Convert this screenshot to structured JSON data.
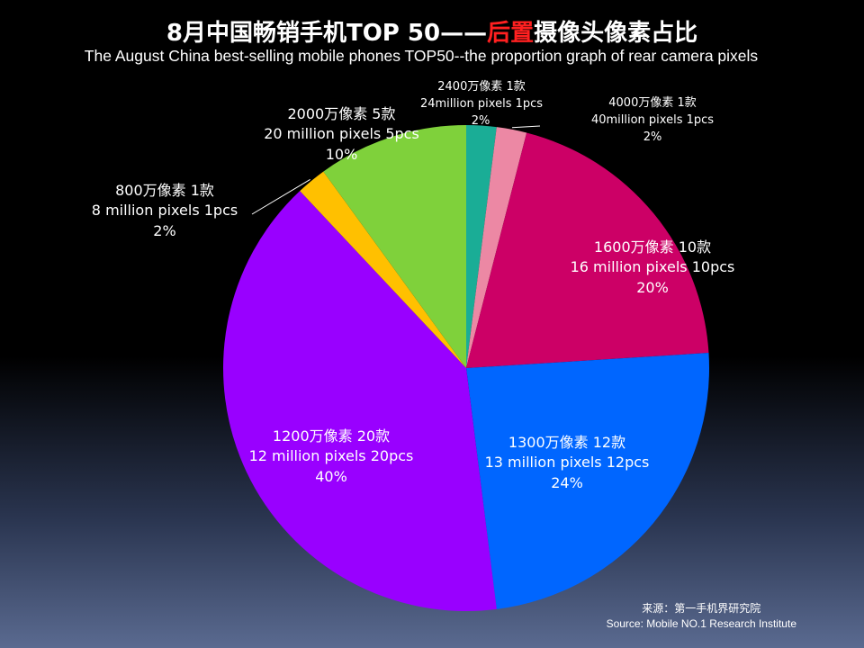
{
  "title": {
    "prefix": "8月中国畅销手机TOP 50——",
    "highlight": "后置",
    "suffix": "摄像头像素占比",
    "highlight_color": "#ff2020"
  },
  "subtitle": "The August China best-selling mobile phones TOP50--the proportion graph of rear camera pixels",
  "source": {
    "cn": "来源：第一手机界研究院",
    "en": "Source: Mobile NO.1 Research Institute"
  },
  "chart_data": {
    "type": "pie",
    "start_angle_deg": 0,
    "direction": "clockwise",
    "slices": [
      {
        "cn": "2400万像素  1款",
        "en": "24million pixels 1pcs",
        "pct_label": "2%",
        "value": 1,
        "color": "#1aad96"
      },
      {
        "cn": "4000万像素  1款",
        "en": "40million pixels 1pcs",
        "pct_label": "2%",
        "value": 1,
        "color": "#ec88a4"
      },
      {
        "cn": "1600万像素  10款",
        "en": "16 million pixels 10pcs",
        "pct_label": "20%",
        "value": 10,
        "color": "#cc0066"
      },
      {
        "cn": "1300万像素 12款",
        "en": "13 million pixels 12pcs",
        "pct_label": "24%",
        "value": 12,
        "color": "#0066ff"
      },
      {
        "cn": "1200万像素  20款",
        "en": "12 million pixels 20pcs",
        "pct_label": "40%",
        "value": 20,
        "color": "#9900ff"
      },
      {
        "cn": "800万像素  1款",
        "en": "8 million pixels 1pcs",
        "pct_label": "2%",
        "value": 1,
        "color": "#ffc000"
      },
      {
        "cn": "2000万像素 5款",
        "en": "20 million pixels 5pcs",
        "pct_label": "10%",
        "value": 5,
        "color": "#7fd13b"
      }
    ]
  }
}
